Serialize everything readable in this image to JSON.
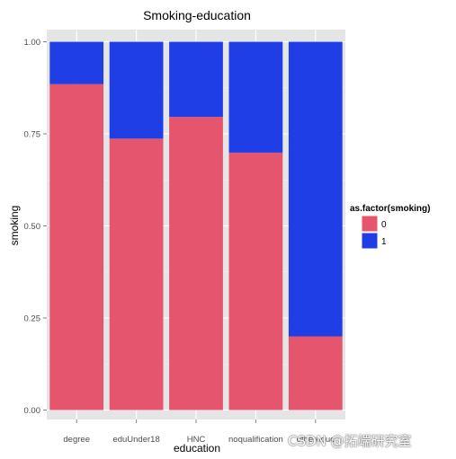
{
  "chart_data": {
    "type": "bar",
    "stacked": true,
    "normalized": true,
    "title": "Smoking-education",
    "xlabel": "education",
    "ylabel": "smoking",
    "ylim": [
      0,
      1
    ],
    "yticks": [
      "0.00",
      "0.25",
      "0.50",
      "0.75",
      "1.00"
    ],
    "ytick_values": [
      0,
      0.25,
      0.5,
      0.75,
      1.0
    ],
    "categories": [
      "degree",
      "eduUnder18",
      "HNC",
      "noqualification",
      "othereduc"
    ],
    "series": [
      {
        "name": "0",
        "color": "#e5556d",
        "values": [
          0.885,
          0.737,
          0.796,
          0.699,
          0.2
        ]
      },
      {
        "name": "1",
        "color": "#1f3ee6",
        "values": [
          0.115,
          0.263,
          0.204,
          0.301,
          0.8
        ]
      }
    ],
    "legend": {
      "title": "as.factor(smoking)",
      "position": "right"
    },
    "grid": true,
    "panel_background": "#e5e5e5"
  },
  "watermark": "CSDN @拓端研究室"
}
